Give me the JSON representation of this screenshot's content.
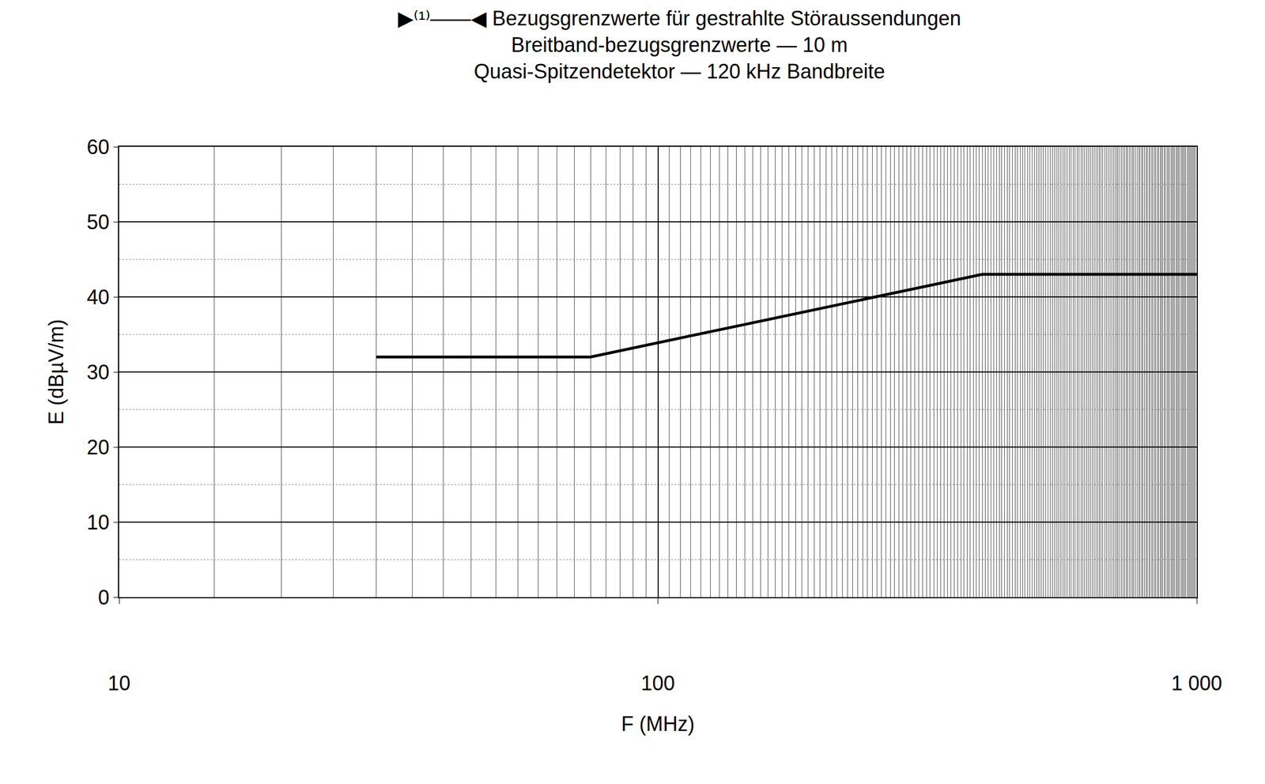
{
  "chart_data": {
    "type": "line",
    "title": "▶⁽¹⁾——◀ Bezugsgrenzwerte für gestrahlte Störaussendungen",
    "subtitle": [
      "Breitband-bezugsgrenzwerte — 10 m",
      "Quasi-Spitzendetektor — 120 kHz Bandbreite"
    ],
    "x_label": "F (MHz)",
    "y_label": "E (dBµV/m)",
    "x": [
      30,
      75,
      400,
      1000
    ],
    "values": [
      32,
      32,
      43,
      43
    ],
    "color": "#000000",
    "log": "x",
    "xlim": [
      10,
      1000
    ],
    "xticks": [
      10,
      100,
      {
        "value": 1000,
        "label": "1 000"
      }
    ],
    "ylim": [
      0,
      60
    ],
    "yticks": [
      0,
      10,
      20,
      30,
      40,
      50,
      60
    ],
    "grid": true
  }
}
